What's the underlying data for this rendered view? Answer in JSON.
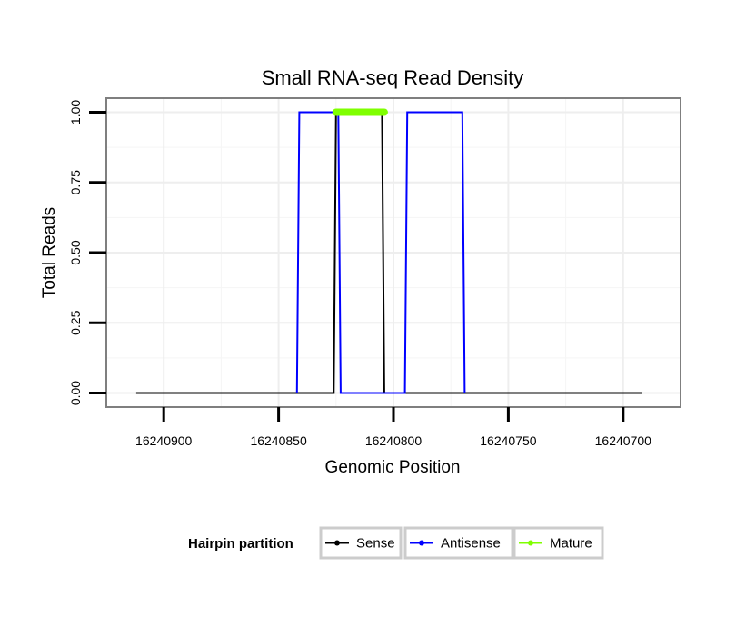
{
  "chart_data": {
    "type": "line",
    "title": "Small RNA-seq Read Density",
    "xlabel": "Genomic Position",
    "ylabel": "Total Reads",
    "x_reversed": true,
    "xlim": [
      16240925,
      16240675
    ],
    "ylim": [
      -0.05,
      1.05
    ],
    "x_ticks": [
      16240900,
      16240850,
      16240800,
      16240750,
      16240700
    ],
    "x_tick_labels": [
      "16240900",
      "16240850",
      "16240800",
      "16240750",
      "16240700"
    ],
    "y_ticks": [
      0,
      0.25,
      0.5,
      0.75,
      1
    ],
    "y_tick_labels": [
      "0.00",
      "0.25",
      "0.50",
      "0.75",
      "1.00"
    ],
    "grid": true,
    "legend": {
      "title": "Hairpin partition",
      "position": "bottom",
      "entries": [
        "Sense",
        "Antisense",
        "Mature"
      ]
    },
    "series": [
      {
        "name": "Sense",
        "color": "#000000",
        "x": [
          16240912,
          16240826,
          16240825,
          16240805,
          16240804,
          16240692
        ],
        "y": [
          0,
          0,
          1,
          1,
          0,
          0
        ]
      },
      {
        "name": "Antisense",
        "color": "#0000ff",
        "x": [
          16240842,
          16240841,
          16240824,
          16240823,
          16240805,
          16240804,
          16240795,
          16240794,
          16240770,
          16240769
        ],
        "y": [
          0,
          1,
          1,
          0,
          0,
          0,
          0,
          1,
          1,
          0
        ]
      },
      {
        "name": "Mature",
        "color": "#7fff00",
        "x": [
          16240825,
          16240804
        ],
        "y": [
          1,
          1
        ]
      }
    ]
  }
}
